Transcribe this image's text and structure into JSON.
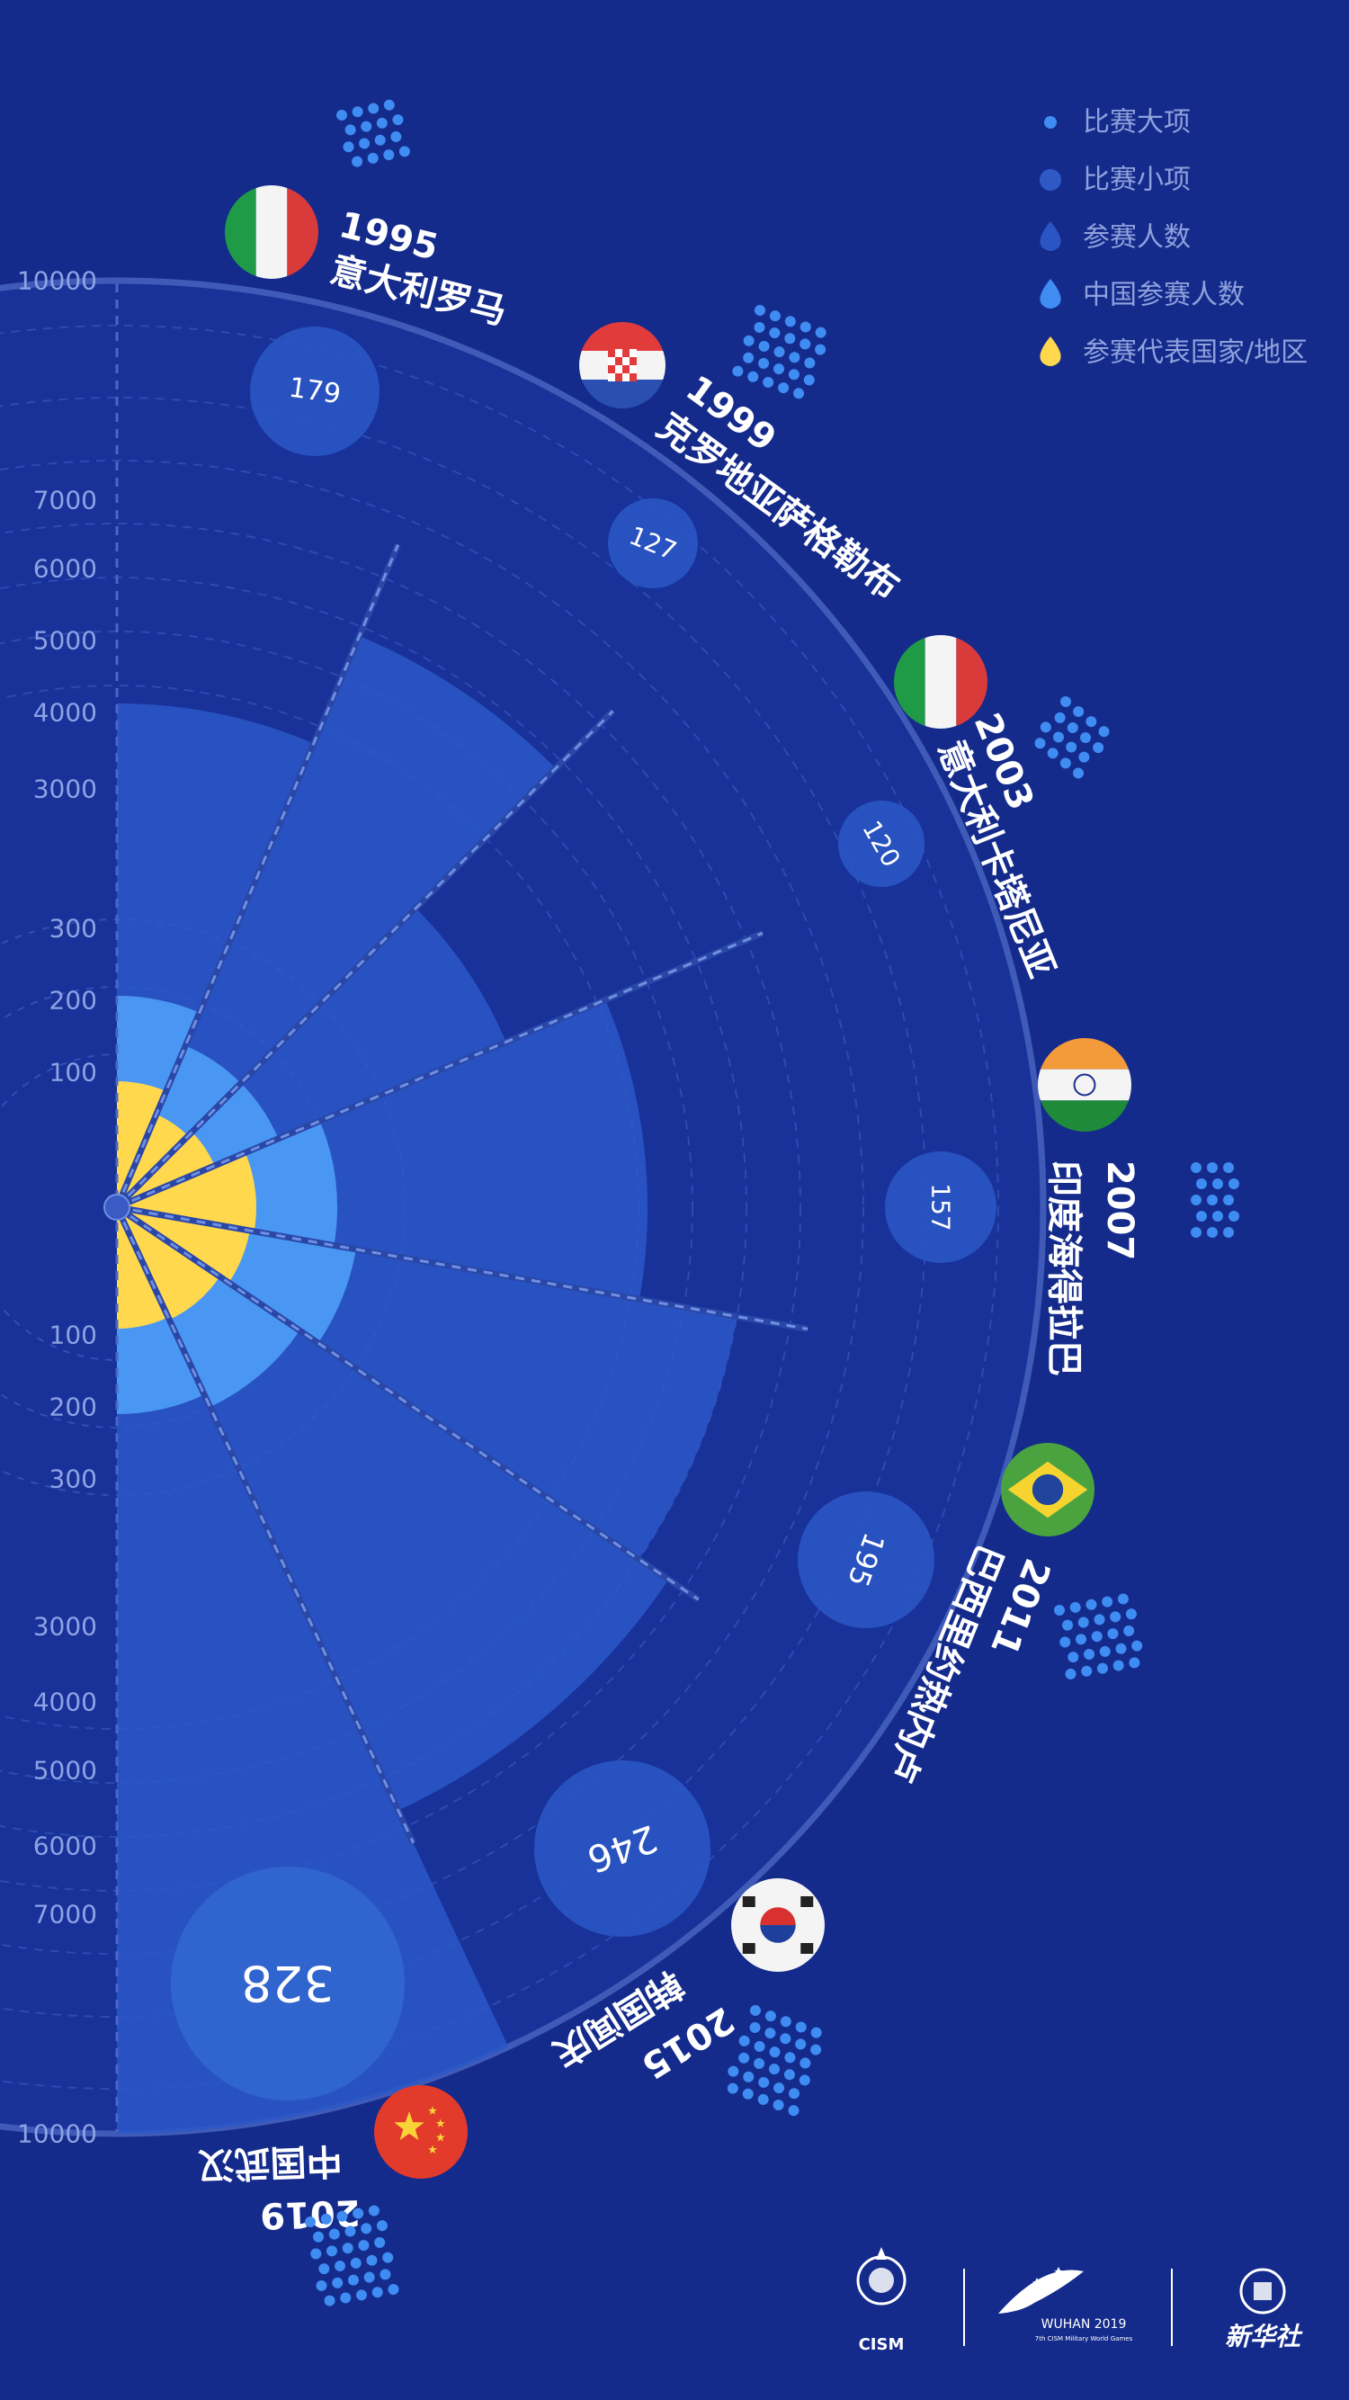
{
  "legend": [
    {
      "label": "比赛大项",
      "shape": "small-dot"
    },
    {
      "label": "比赛小项",
      "shape": "dot"
    },
    {
      "label": "参赛人数",
      "shape": "drop"
    },
    {
      "label": "中国参赛人数",
      "shape": "drop"
    },
    {
      "label": "参赛代表国家/地区",
      "shape": "drop"
    }
  ],
  "colors": {
    "background": "#142b8c",
    "participants": "#2b58c8",
    "china_participants": "#4a97f3",
    "countries": "#ffd84d",
    "sub_events": "#2f5ac6",
    "dots": "#3f8cf2",
    "ring": "#3f5bb7"
  },
  "chart_data": {
    "type": "polar-area",
    "title": "",
    "axis_upper": {
      "ticks": [
        "10000",
        "7000",
        "6000",
        "5000",
        "4000",
        "3000",
        "300",
        "200",
        "100"
      ]
    },
    "axis_lower": {
      "ticks": [
        "100",
        "200",
        "300",
        "3000",
        "4000",
        "5000",
        "6000",
        "7000",
        "10000"
      ]
    },
    "series": [
      {
        "name": "比赛小项",
        "values": [
          179,
          127,
          120,
          157,
          195,
          246,
          328
        ]
      }
    ],
    "editions": [
      {
        "year": "1995",
        "city": "意大利罗马",
        "flag": "italy",
        "sub_events": "179"
      },
      {
        "year": "1999",
        "city": "克罗地亚萨格勒布",
        "flag": "croatia",
        "sub_events": "127"
      },
      {
        "year": "2003",
        "city": "意大利卡塔尼亚",
        "flag": "italy",
        "sub_events": "120"
      },
      {
        "year": "2007",
        "city": "印度海得拉巴",
        "flag": "india",
        "sub_events": "157"
      },
      {
        "year": "2011",
        "city": "巴西里约热内卢",
        "flag": "brazil",
        "sub_events": "195"
      },
      {
        "year": "2015",
        "city": "韩国闻庆",
        "flag": "korea",
        "sub_events": "246"
      },
      {
        "year": "2019",
        "city": "中国武汉",
        "flag": "china",
        "sub_events": "328"
      }
    ]
  },
  "footer": {
    "cism_label": "CISM",
    "wuhan_label": "WUHAN 2019",
    "wuhan_sub": "7th CISM Military World Games",
    "xinhua_label": "新华社"
  }
}
